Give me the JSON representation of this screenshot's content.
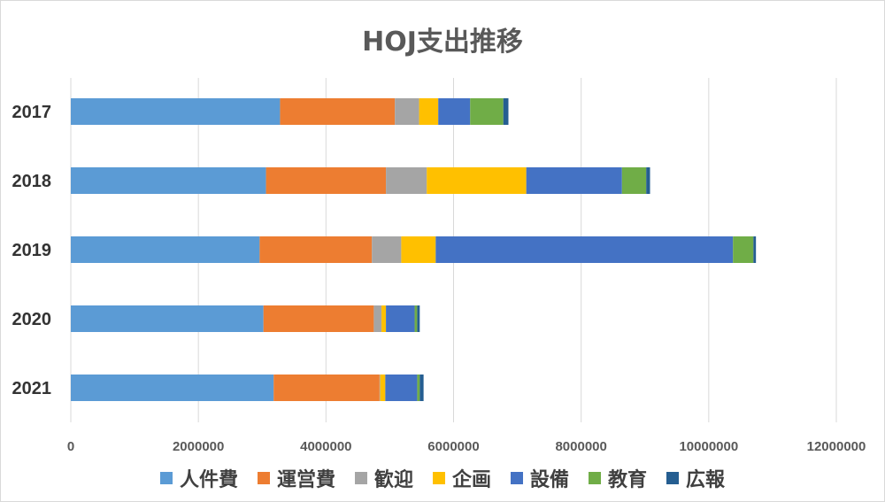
{
  "chart_data": {
    "type": "bar",
    "orientation": "horizontal",
    "stacked": true,
    "title": "HOJ支出推移",
    "categories": [
      "2017",
      "2018",
      "2019",
      "2020",
      "2021"
    ],
    "xlim": [
      0,
      12000000
    ],
    "xticks": [
      0,
      2000000,
      4000000,
      6000000,
      8000000,
      10000000,
      12000000
    ],
    "grid": "vertical",
    "legend_position": "bottom",
    "series": [
      {
        "name": "人件費",
        "color": "#5b9bd5",
        "values": [
          3280000,
          3060000,
          2960000,
          3020000,
          3180000
        ]
      },
      {
        "name": "運営費",
        "color": "#ed7d31",
        "values": [
          1800000,
          1880000,
          1760000,
          1730000,
          1660000
        ]
      },
      {
        "name": "歓迎",
        "color": "#a5a5a5",
        "values": [
          380000,
          640000,
          460000,
          120000,
          10000
        ]
      },
      {
        "name": "企画",
        "color": "#ffc000",
        "values": [
          300000,
          1560000,
          540000,
          70000,
          80000
        ]
      },
      {
        "name": "設備",
        "color": "#4472c4",
        "values": [
          500000,
          1500000,
          4660000,
          450000,
          500000
        ]
      },
      {
        "name": "教育",
        "color": "#70ad47",
        "values": [
          520000,
          380000,
          320000,
          40000,
          40000
        ]
      },
      {
        "name": "広報",
        "color": "#255e91",
        "values": [
          80000,
          60000,
          40000,
          40000,
          60000
        ]
      }
    ]
  }
}
